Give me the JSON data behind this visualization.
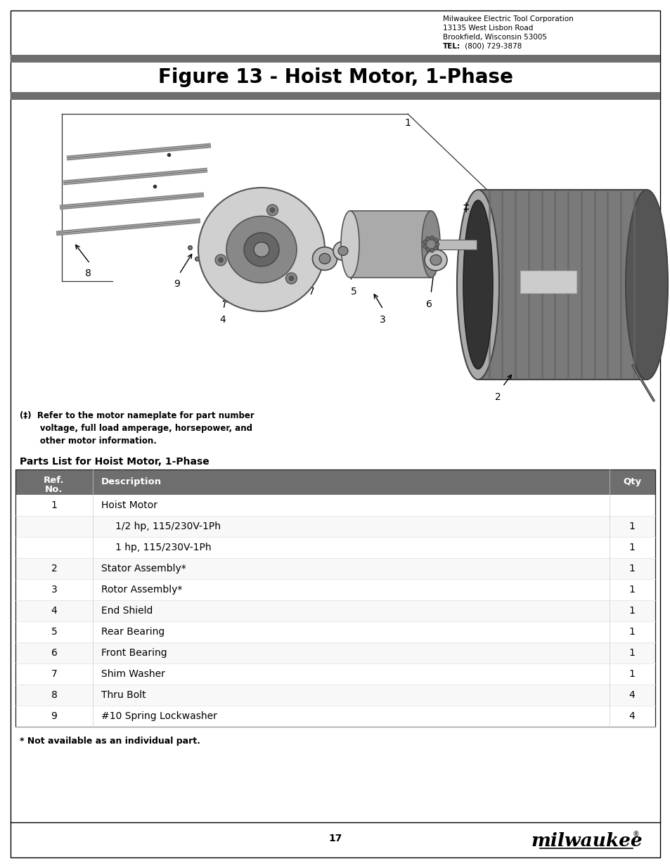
{
  "page_title": "Figure 13 - Hoist Motor, 1-Phase",
  "company_line1": "Milwaukee Electric Tool Corporation",
  "company_line2": "13135 West Lisbon Road",
  "company_line3": "Brookfield, Wisconsin 53005",
  "company_tel_label": "TEL:",
  "company_tel": " (800) 729-3878",
  "header_bar_color": "#6e6e6e",
  "title_fontsize": 20,
  "footnote_bold": "(‡)  Refer to the motor nameplate for part number\n       voltage, full load amperage, horsepower, and\n       other motor information.",
  "parts_list_title": "Parts List for Hoist Motor, 1-Phase",
  "table_header_bg": "#6e6e6e",
  "col_ref": "Ref.\nNo.",
  "col_desc": "Description",
  "col_qty": "Qty",
  "parts": [
    {
      "ref": "1",
      "desc": "Hoist Motor",
      "qty": "",
      "indent": false
    },
    {
      "ref": "",
      "desc": "1/2 hp, 115/230V-1Ph",
      "qty": "1",
      "indent": true
    },
    {
      "ref": "",
      "desc": "1 hp, 115/230V-1Ph",
      "qty": "1",
      "indent": true
    },
    {
      "ref": "2",
      "desc": "Stator Assembly*",
      "qty": "1",
      "indent": false
    },
    {
      "ref": "3",
      "desc": "Rotor Assembly*",
      "qty": "1",
      "indent": false
    },
    {
      "ref": "4",
      "desc": "End Shield",
      "qty": "1",
      "indent": false
    },
    {
      "ref": "5",
      "desc": "Rear Bearing",
      "qty": "1",
      "indent": false
    },
    {
      "ref": "6",
      "desc": "Front Bearing",
      "qty": "1",
      "indent": false
    },
    {
      "ref": "7",
      "desc": "Shim Washer",
      "qty": "1",
      "indent": false
    },
    {
      "ref": "8",
      "desc": "Thru Bolt",
      "qty": "4",
      "indent": false
    },
    {
      "ref": "9",
      "desc": "#10 Spring Lockwasher",
      "qty": "4",
      "indent": false
    }
  ],
  "footnote2": "* Not available as an individual part.",
  "page_number": "17",
  "bg_color": "#ffffff",
  "figw": 9.54,
  "figh": 12.35,
  "dpi": 100
}
